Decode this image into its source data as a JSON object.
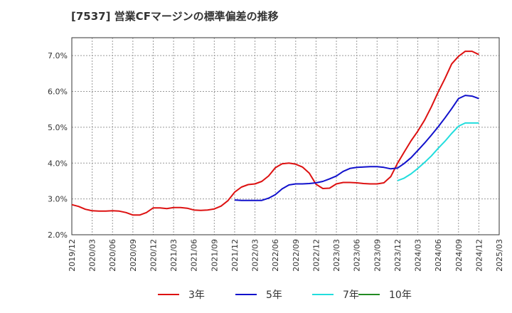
{
  "chart_data": {
    "type": "line",
    "title": "[7537]  営業CFマージンの標準偏差の推移",
    "xlabel": "",
    "ylabel": "",
    "ylim": [
      0.02,
      0.075
    ],
    "yticks": [
      0.02,
      0.03,
      0.04,
      0.05,
      0.06,
      0.07
    ],
    "ytick_labels": [
      "2.0%",
      "3.0%",
      "4.0%",
      "5.0%",
      "6.0%",
      "7.0%"
    ],
    "xticks": [
      "2019/12",
      "2020/03",
      "2020/06",
      "2020/09",
      "2020/12",
      "2021/03",
      "2021/06",
      "2021/09",
      "2021/12",
      "2022/03",
      "2022/06",
      "2022/09",
      "2022/12",
      "2023/03",
      "2023/06",
      "2023/09",
      "2023/12",
      "2024/03",
      "2024/06",
      "2024/09",
      "2024/12",
      "2025/03"
    ],
    "grid": true,
    "legend_position": "bottom",
    "series": [
      {
        "name": "3年",
        "color": "#dd1111",
        "start": "2019/12",
        "values": [
          0.0284,
          0.0279,
          0.0271,
          0.0267,
          0.0266,
          0.0266,
          0.0267,
          0.0266,
          0.0262,
          0.0255,
          0.0255,
          0.0262,
          0.0275,
          0.0275,
          0.0273,
          0.0276,
          0.0276,
          0.0274,
          0.0269,
          0.0268,
          0.0269,
          0.0272,
          0.028,
          0.0295,
          0.0319,
          0.0333,
          0.034,
          0.0342,
          0.0349,
          0.0364,
          0.0387,
          0.0398,
          0.04,
          0.0397,
          0.0389,
          0.0372,
          0.0341,
          0.0329,
          0.033,
          0.0342,
          0.0346,
          0.0346,
          0.0345,
          0.0343,
          0.0342,
          0.0342,
          0.0345,
          0.0362,
          0.0399,
          0.0431,
          0.0462,
          0.0489,
          0.052,
          0.0557,
          0.0598,
          0.0636,
          0.0677,
          0.0698,
          0.0712,
          0.0712,
          0.0703
        ]
      },
      {
        "name": "5年",
        "color": "#1111cc",
        "start": "2021/12",
        "values": [
          0.0297,
          0.0296,
          0.0296,
          0.0296,
          0.0296,
          0.0302,
          0.0312,
          0.0328,
          0.0339,
          0.0342,
          0.0342,
          0.0343,
          0.0345,
          0.0349,
          0.0356,
          0.0364,
          0.0377,
          0.0385,
          0.0388,
          0.0389,
          0.039,
          0.039,
          0.0388,
          0.0384,
          0.0386,
          0.0399,
          0.0415,
          0.0435,
          0.0456,
          0.0478,
          0.0501,
          0.0526,
          0.0552,
          0.058,
          0.0589,
          0.0587,
          0.058
        ]
      },
      {
        "name": "7年",
        "color": "#22dddd",
        "start": "2023/12",
        "values": [
          0.0351,
          0.0358,
          0.037,
          0.0385,
          0.0402,
          0.042,
          0.0441,
          0.0461,
          0.0483,
          0.0503,
          0.0512,
          0.0512,
          0.0512
        ]
      },
      {
        "name": "10年",
        "color": "#228b22",
        "start": "2029/12",
        "values": []
      }
    ]
  }
}
